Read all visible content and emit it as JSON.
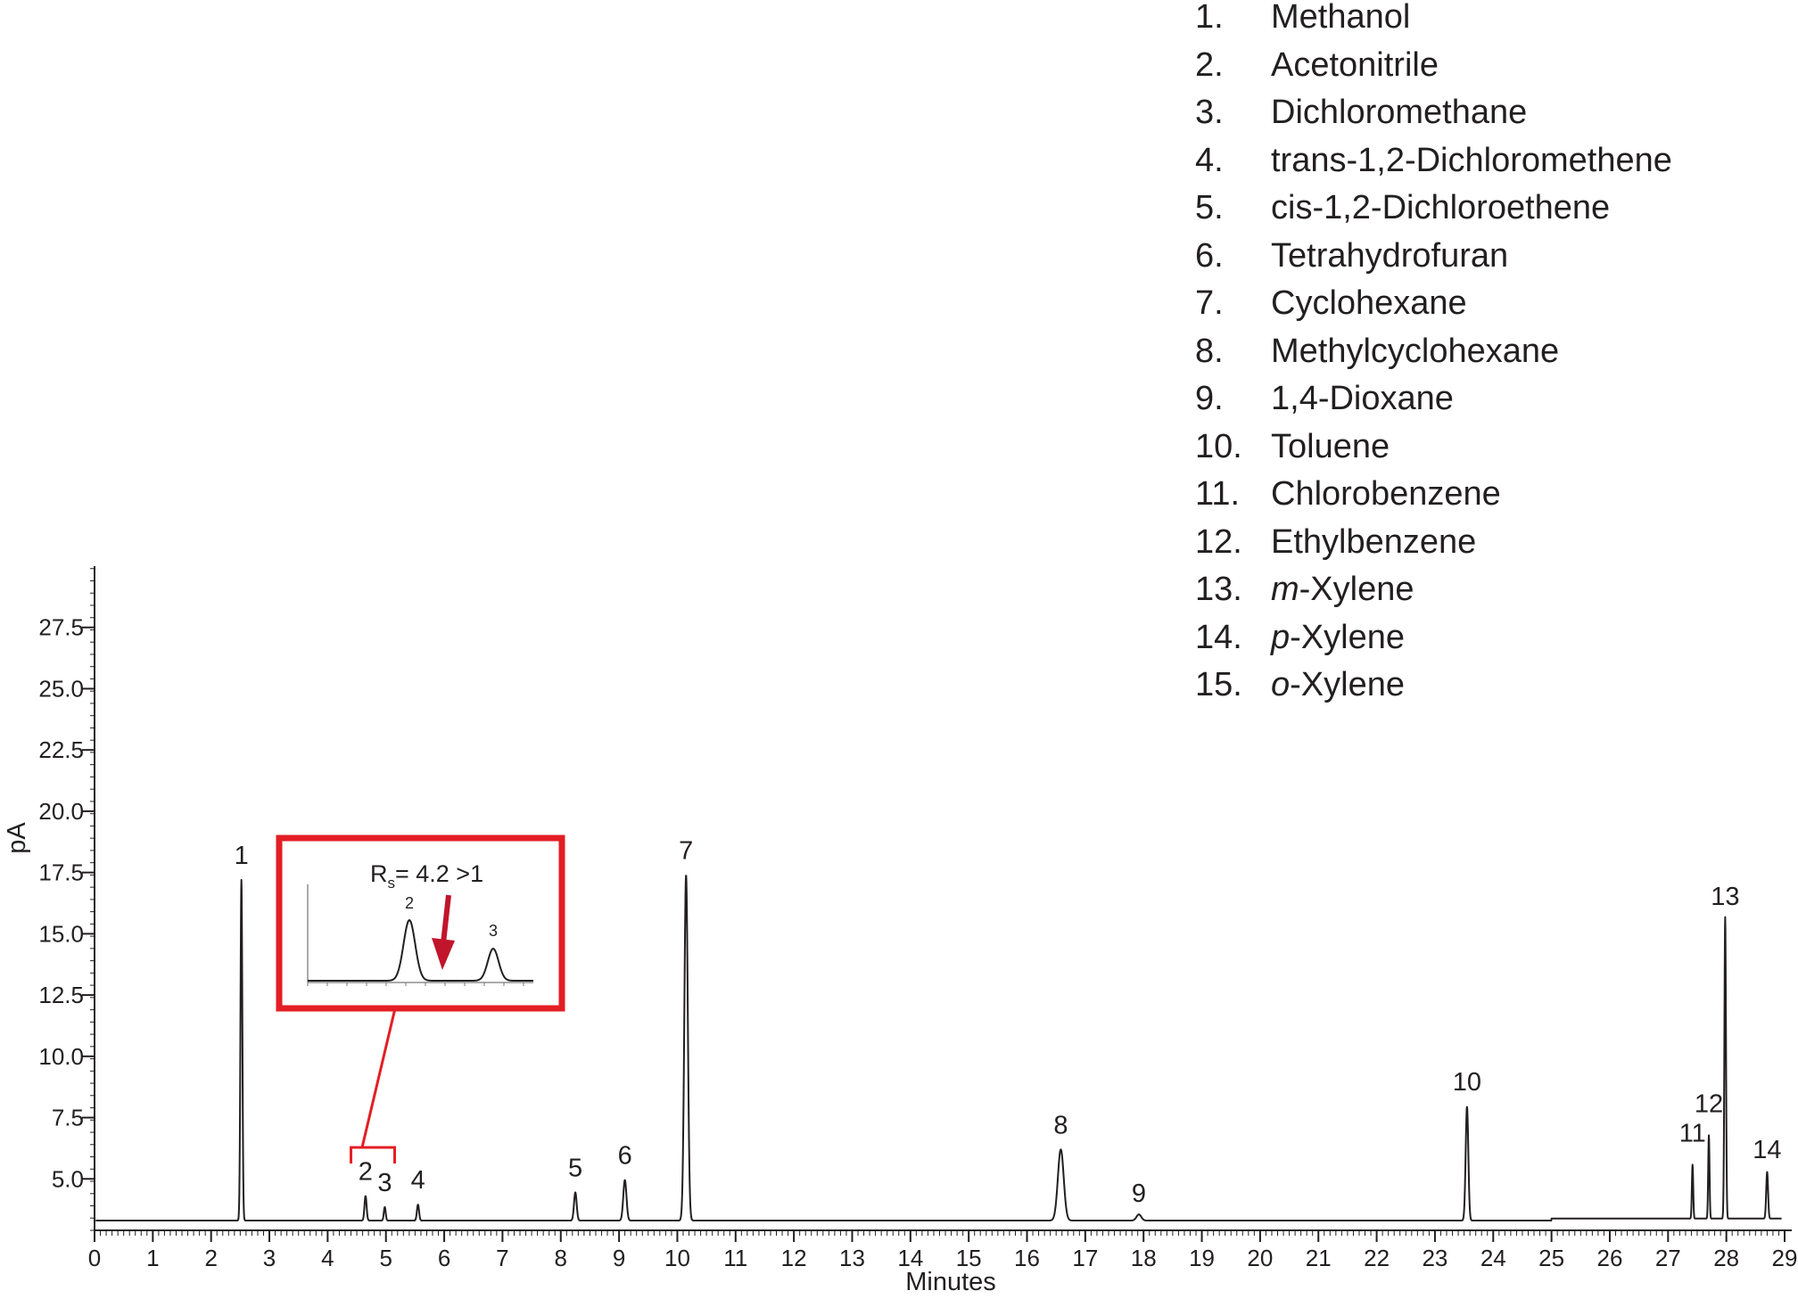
{
  "chart_data": {
    "type": "line",
    "ylabel": "pA",
    "xlabel": "Minutes",
    "xlim": [
      0,
      29
    ],
    "ylim": [
      2.9,
      30
    ],
    "x_ticks": [
      "0",
      "1",
      "2",
      "3",
      "4",
      "5",
      "6",
      "7",
      "8",
      "9",
      "10",
      "11",
      "12",
      "13",
      "14",
      "15",
      "16",
      "17",
      "18",
      "19",
      "20",
      "21",
      "22",
      "23",
      "24",
      "25",
      "26",
      "27",
      "28",
      "29"
    ],
    "y_ticks": [
      "5.0",
      "7.5",
      "10.0",
      "12.5",
      "15.0",
      "17.5",
      "20.0",
      "22.5",
      "25.0",
      "27.5"
    ],
    "baseline": 3.3,
    "peaks": [
      {
        "label": "1",
        "x": 2.52,
        "y": 17.2,
        "width": 0.035
      },
      {
        "label": "2",
        "x": 4.65,
        "y": 4.3,
        "width": 0.04
      },
      {
        "label": "3",
        "x": 4.98,
        "y": 3.85,
        "width": 0.035
      },
      {
        "label": "4",
        "x": 5.55,
        "y": 3.95,
        "width": 0.04
      },
      {
        "label": "5",
        "x": 8.25,
        "y": 4.45,
        "width": 0.05
      },
      {
        "label": "6",
        "x": 9.1,
        "y": 4.95,
        "width": 0.06
      },
      {
        "label": "7",
        "x": 10.15,
        "y": 17.4,
        "width": 0.065
      },
      {
        "label": "8",
        "x": 16.58,
        "y": 6.2,
        "width": 0.11
      },
      {
        "label": "9",
        "x": 17.92,
        "y": 3.55,
        "width": 0.09
      },
      {
        "label": "10",
        "x": 23.55,
        "y": 7.95,
        "width": 0.05
      },
      {
        "label": "11",
        "x": 27.42,
        "y": 5.5,
        "width": 0.025
      },
      {
        "label": "12",
        "x": 27.7,
        "y": 6.7,
        "width": 0.025
      },
      {
        "label": "13",
        "x": 27.98,
        "y": 15.6,
        "width": 0.03
      },
      {
        "label": "14",
        "x": 28.7,
        "y": 5.2,
        "width": 0.035
      }
    ],
    "legend": [
      {
        "num": "1.",
        "prefix": "",
        "name": "Methanol"
      },
      {
        "num": "2.",
        "prefix": "",
        "name": "Acetonitrile"
      },
      {
        "num": "3.",
        "prefix": "",
        "name": "Dichloromethane"
      },
      {
        "num": "4.",
        "prefix": "",
        "name": "trans-1,2-Dichloromethene"
      },
      {
        "num": "5.",
        "prefix": "",
        "name": "cis-1,2-Dichloroethene"
      },
      {
        "num": "6.",
        "prefix": "",
        "name": "Tetrahydrofuran"
      },
      {
        "num": "7.",
        "prefix": "",
        "name": "Cyclohexane"
      },
      {
        "num": "8.",
        "prefix": "",
        "name": "Methylcyclohexane"
      },
      {
        "num": "9.",
        "prefix": "",
        "name": "1,4-Dioxane"
      },
      {
        "num": "10.",
        "prefix": "",
        "name": "Toluene"
      },
      {
        "num": "11.",
        "prefix": "",
        "name": "Chlorobenzene"
      },
      {
        "num": "12.",
        "prefix": "",
        "name": "Ethylbenzene"
      },
      {
        "num": "13.",
        "prefix": "m",
        "name": "-Xylene"
      },
      {
        "num": "14.",
        "prefix": "p",
        "name": "-Xylene"
      },
      {
        "num": "15.",
        "prefix": "o",
        "name": "-Xylene"
      }
    ],
    "inset": {
      "annotation_main": "R",
      "annotation_sub": "s",
      "annotation_rest": "= 4.2 >1",
      "peak_labels": [
        "2",
        "3"
      ],
      "zoom_range_x": [
        4.4,
        5.15
      ],
      "accent_color": "#e31e24",
      "arrow_color": "#c1152b"
    }
  }
}
